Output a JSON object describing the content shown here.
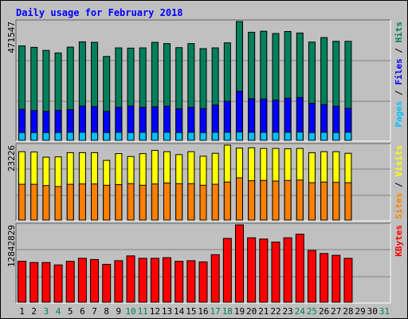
{
  "title": "Daily usage for February 2018",
  "colors": {
    "hits": "#00805c",
    "files": "#0000ff",
    "pages": "#00c0ff",
    "visits": "#ffff00",
    "sites": "#ff8000",
    "kbytes": "#ff0000",
    "weekday_text": "#000000",
    "weekend_text": "#00805c"
  },
  "chart_data": [
    {
      "type": "bar",
      "panel": "hits-files-pages",
      "ymax_label": "471547",
      "ylabel_parts": [
        {
          "text": "Pages",
          "color": "#00c0ff"
        },
        {
          "text": " / ",
          "color": "#000000"
        },
        {
          "text": "Files",
          "color": "#0000ff"
        },
        {
          "text": " / ",
          "color": "#000000"
        },
        {
          "text": "Hits",
          "color": "#00805c"
        }
      ],
      "ylim": [
        0,
        471547
      ],
      "series": [
        {
          "name": "Hits",
          "values": [
            375000,
            369000,
            357000,
            347000,
            370000,
            391000,
            389000,
            333000,
            367000,
            366000,
            367000,
            389000,
            384000,
            368000,
            384000,
            364000,
            367000,
            387000,
            471547,
            429000,
            433000,
            424000,
            432000,
            426000,
            390000,
            408000,
            393000,
            393000,
            0,
            0,
            0
          ]
        },
        {
          "name": "Files",
          "values": [
            123000,
            118000,
            115000,
            119000,
            122000,
            136000,
            134000,
            115000,
            131000,
            136000,
            131000,
            133000,
            135000,
            125000,
            131000,
            126000,
            140000,
            155000,
            195000,
            165000,
            164000,
            160000,
            167000,
            170000,
            147000,
            142000,
            135000,
            127000,
            0,
            0,
            0
          ]
        },
        {
          "name": "Pages",
          "values": [
            31000,
            31000,
            31000,
            31000,
            32000,
            32000,
            32000,
            31000,
            32000,
            31000,
            32000,
            32000,
            32000,
            31000,
            32000,
            31000,
            32000,
            32000,
            33000,
            32000,
            32000,
            32000,
            32000,
            33000,
            31000,
            32000,
            31000,
            32000,
            0,
            0,
            0
          ]
        }
      ]
    },
    {
      "type": "bar",
      "panel": "visits-sites",
      "ymax_label": "23226",
      "ylabel_parts": [
        {
          "text": "Sites",
          "color": "#ff8000"
        },
        {
          "text": " / ",
          "color": "#000000"
        },
        {
          "text": "Visits",
          "color": "#ffff00"
        }
      ],
      "ylim": [
        0,
        23226
      ],
      "series": [
        {
          "name": "Visits",
          "values": [
            21200,
            21100,
            19500,
            19600,
            20900,
            20900,
            20900,
            18500,
            20600,
            19700,
            20600,
            21600,
            21200,
            20300,
            21200,
            19800,
            20700,
            23226,
            22300,
            22400,
            22200,
            22200,
            22100,
            22200,
            20900,
            21200,
            21200,
            20700,
            0,
            0,
            0
          ]
        },
        {
          "name": "Sites",
          "values": [
            11100,
            11100,
            10700,
            10400,
            11100,
            11200,
            11200,
            10800,
            11000,
            11300,
            10800,
            11200,
            11500,
            11300,
            11300,
            10800,
            11100,
            11800,
            13100,
            12200,
            12300,
            12100,
            12300,
            12400,
            11600,
            11800,
            11700,
            11600,
            0,
            0,
            0
          ]
        }
      ]
    },
    {
      "type": "bar",
      "panel": "kbytes",
      "ymax_label": "12842829",
      "ylabel_parts": [
        {
          "text": "KBytes",
          "color": "#ff0000"
        }
      ],
      "ylim": [
        0,
        12842829
      ],
      "series": [
        {
          "name": "KBytes",
          "values": [
            6800000,
            6600000,
            6600000,
            6200000,
            6800000,
            7300000,
            7100000,
            6300000,
            6900000,
            7700000,
            7300000,
            7300000,
            7400000,
            6800000,
            6900000,
            6700000,
            7900000,
            10600000,
            12842829,
            10700000,
            10500000,
            10000000,
            10700000,
            11300000,
            8600000,
            8100000,
            7800000,
            7300000,
            0,
            0,
            0
          ]
        }
      ]
    }
  ],
  "days": [
    {
      "label": "1",
      "weekend": false
    },
    {
      "label": "2",
      "weekend": false
    },
    {
      "label": "3",
      "weekend": true
    },
    {
      "label": "4",
      "weekend": true
    },
    {
      "label": "5",
      "weekend": false
    },
    {
      "label": "6",
      "weekend": false
    },
    {
      "label": "7",
      "weekend": false
    },
    {
      "label": "8",
      "weekend": false
    },
    {
      "label": "9",
      "weekend": false
    },
    {
      "label": "10",
      "weekend": true
    },
    {
      "label": "11",
      "weekend": true
    },
    {
      "label": "12",
      "weekend": false
    },
    {
      "label": "13",
      "weekend": false
    },
    {
      "label": "14",
      "weekend": false
    },
    {
      "label": "15",
      "weekend": false
    },
    {
      "label": "16",
      "weekend": false
    },
    {
      "label": "17",
      "weekend": true
    },
    {
      "label": "18",
      "weekend": true
    },
    {
      "label": "19",
      "weekend": false
    },
    {
      "label": "20",
      "weekend": false
    },
    {
      "label": "21",
      "weekend": false
    },
    {
      "label": "22",
      "weekend": false
    },
    {
      "label": "23",
      "weekend": false
    },
    {
      "label": "24",
      "weekend": true
    },
    {
      "label": "25",
      "weekend": true
    },
    {
      "label": "26",
      "weekend": false
    },
    {
      "label": "27",
      "weekend": false
    },
    {
      "label": "28",
      "weekend": false
    },
    {
      "label": "29",
      "weekend": false
    },
    {
      "label": "30",
      "weekend": false
    },
    {
      "label": "31",
      "weekend": true
    }
  ]
}
